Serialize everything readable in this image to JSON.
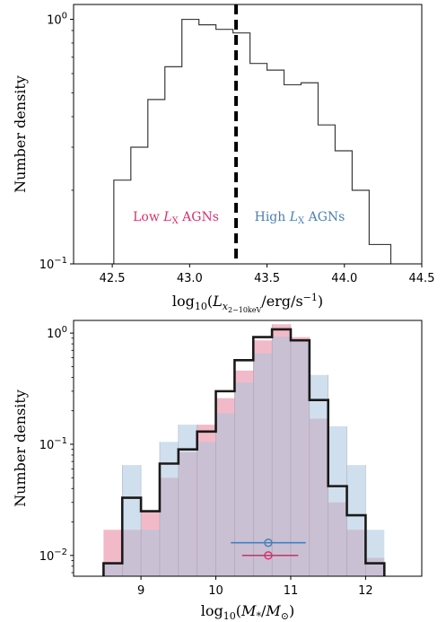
{
  "chart_data": [
    {
      "type": "histogram",
      "xlabel": "log10(L_x2-10keV/erg/s^-1)",
      "ylabel": "Number density",
      "xscale": "linear",
      "yscale": "log",
      "xlim": [
        42.25,
        44.5
      ],
      "ylim": [
        0.1,
        1.15
      ],
      "xticks": [
        "42.5",
        "43.0",
        "43.5",
        "44.0",
        "44.5"
      ],
      "yticks": [
        "10^-1",
        "10^0"
      ],
      "series": [
        {
          "style": "step",
          "color": "#3a3a3a",
          "bin_edges": [
            42.51,
            42.62,
            42.73,
            42.84,
            42.95,
            43.06,
            43.17,
            43.28,
            43.39,
            43.5,
            43.61,
            43.72,
            43.83,
            43.94,
            44.05,
            44.16,
            44.3
          ],
          "values": [
            0.22,
            0.3,
            0.47,
            0.64,
            1.0,
            0.95,
            0.91,
            0.88,
            0.66,
            0.62,
            0.54,
            0.55,
            0.37,
            0.29,
            0.2,
            0.12
          ]
        }
      ],
      "vline": {
        "x": 43.3,
        "style": "dashed",
        "color": "#000000"
      },
      "annotations": [
        {
          "text_prefix": "Low ",
          "symbol": "L",
          "subscript": "X",
          "text_suffix": " AGNs",
          "color": "#d6336c"
        },
        {
          "text_prefix": "High ",
          "symbol": "L",
          "subscript": "X",
          "text_suffix": " AGNs",
          "color": "#4a7fb5"
        }
      ]
    },
    {
      "type": "histogram",
      "xlabel": "log10(M*/M⊙)",
      "ylabel": "Number density",
      "xscale": "linear",
      "yscale": "log",
      "xlim": [
        8.1,
        12.75
      ],
      "ylim": [
        0.0065,
        1.3
      ],
      "xticks": [
        "9",
        "10",
        "11",
        "12"
      ],
      "yticks": [
        "10^-2",
        "10^-1",
        "10^0"
      ],
      "bin_edges": [
        8.5,
        8.75,
        9.0,
        9.25,
        9.5,
        9.75,
        10.0,
        10.25,
        10.5,
        10.75,
        11.0,
        11.25,
        11.5,
        11.75,
        12.0,
        12.25
      ],
      "series": [
        {
          "name": "",
          "style": "filled",
          "color": "#e8819a",
          "values": [
            0.017,
            0.017,
            0.025,
            0.05,
            0.085,
            0.15,
            0.26,
            0.46,
            0.86,
            1.2,
            0.92,
            0.17,
            0.03,
            0.017,
            0.0095
          ]
        },
        {
          "name": "",
          "style": "filled",
          "color": "#a9c4df",
          "values": [
            0.0085,
            0.065,
            0.017,
            0.105,
            0.15,
            0.105,
            0.19,
            0.36,
            0.66,
            0.93,
            0.83,
            0.42,
            0.145,
            0.065,
            0.017
          ]
        },
        {
          "name": "",
          "style": "step",
          "color": "#1a1a1a",
          "values": [
            0.0085,
            0.033,
            0.025,
            0.067,
            0.09,
            0.13,
            0.3,
            0.57,
            0.92,
            1.08,
            0.86,
            0.25,
            0.042,
            0.023,
            0.0085
          ]
        }
      ],
      "errorbars": [
        {
          "color": "#4a7fb5",
          "x": 10.7,
          "y": 0.013,
          "xerr": [
            10.2,
            11.2
          ],
          "marker": "open-circle"
        },
        {
          "color": "#d6336c",
          "x": 10.7,
          "y": 0.01,
          "xerr": [
            10.35,
            11.1
          ],
          "marker": "open-circle"
        }
      ]
    }
  ]
}
